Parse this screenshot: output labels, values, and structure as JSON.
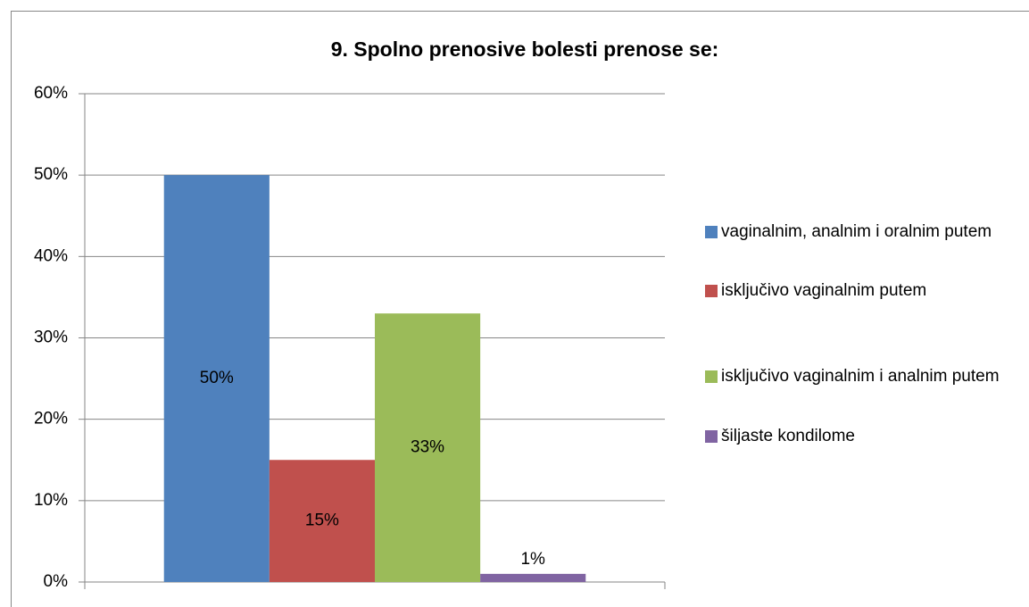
{
  "chart_data": {
    "type": "bar",
    "title": "9. Spolno prenosive bolesti prenose se:",
    "categories": [
      null
    ],
    "series": [
      {
        "name": "vaginalnim, analnim i oralnim putem",
        "color": "#4f81bd",
        "values": [
          50
        ],
        "value_labels": [
          "50%"
        ]
      },
      {
        "name": "isključivo vaginalnim putem",
        "color": "#c0504d",
        "values": [
          15
        ],
        "value_labels": [
          "15%"
        ]
      },
      {
        "name": "isključivo vaginalnim i analnim putem",
        "color": "#9bbb59",
        "values": [
          33
        ],
        "value_labels": [
          "33%"
        ]
      },
      {
        "name": "šiljaste kondilome",
        "color": "#8064a2",
        "values": [
          1
        ],
        "value_labels": [
          "1%"
        ]
      }
    ],
    "ylim": [
      0,
      60
    ],
    "yticks": [
      {
        "value": 0,
        "label": "0%"
      },
      {
        "value": 10,
        "label": "10%"
      },
      {
        "value": 20,
        "label": "20%"
      },
      {
        "value": 30,
        "label": "30%"
      },
      {
        "value": 40,
        "label": "40%"
      },
      {
        "value": 50,
        "label": "50%"
      },
      {
        "value": 60,
        "label": "60%"
      }
    ],
    "grid": true,
    "legend": "right"
  }
}
